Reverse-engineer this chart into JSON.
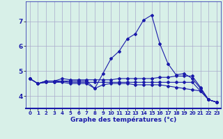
{
  "x": [
    0,
    1,
    2,
    3,
    4,
    5,
    6,
    7,
    8,
    9,
    10,
    11,
    12,
    13,
    14,
    15,
    16,
    17,
    18,
    19,
    20,
    21,
    22,
    23
  ],
  "line1": [
    4.7,
    4.5,
    4.6,
    4.6,
    4.6,
    4.6,
    4.6,
    4.6,
    4.3,
    4.9,
    5.5,
    5.8,
    6.3,
    6.5,
    7.05,
    7.25,
    6.1,
    5.3,
    4.85,
    4.9,
    4.7,
    4.3,
    3.85,
    3.75
  ],
  "line2": [
    4.7,
    4.5,
    4.6,
    4.6,
    4.7,
    4.65,
    4.65,
    4.65,
    4.65,
    4.65,
    4.65,
    4.7,
    4.7,
    4.7,
    4.7,
    4.7,
    4.75,
    4.75,
    4.8,
    4.8,
    4.8,
    4.35,
    3.85,
    3.75
  ],
  "line3": [
    4.7,
    4.5,
    4.55,
    4.55,
    4.55,
    4.5,
    4.5,
    4.5,
    4.3,
    4.45,
    4.5,
    4.5,
    4.5,
    4.45,
    4.45,
    4.45,
    4.45,
    4.4,
    4.35,
    4.3,
    4.25,
    4.2,
    3.85,
    3.75
  ],
  "line4": [
    4.7,
    4.5,
    4.55,
    4.55,
    4.6,
    4.55,
    4.55,
    4.55,
    4.55,
    4.55,
    4.55,
    4.55,
    4.55,
    4.55,
    4.55,
    4.55,
    4.55,
    4.55,
    4.55,
    4.55,
    4.55,
    4.2,
    3.85,
    3.75
  ],
  "line_color": "#1a1aaa",
  "bg_color": "#d8f0e8",
  "grid_color": "#aaaacc",
  "xlabel": "Graphe des températures (°c)",
  "ylim": [
    3.5,
    7.8
  ],
  "xlim": [
    -0.5,
    23.5
  ],
  "yticks": [
    4,
    5,
    6,
    7
  ],
  "xticks": [
    0,
    1,
    2,
    3,
    4,
    5,
    6,
    7,
    8,
    9,
    10,
    11,
    12,
    13,
    14,
    15,
    16,
    17,
    18,
    19,
    20,
    21,
    22,
    23
  ]
}
